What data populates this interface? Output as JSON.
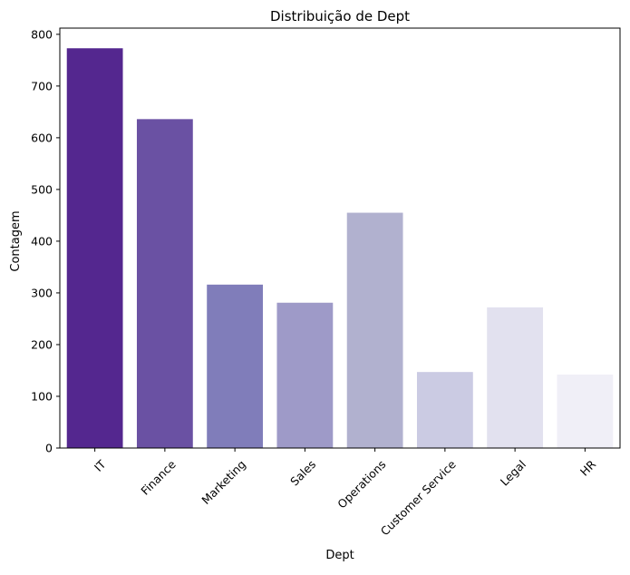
{
  "chart_data": {
    "type": "bar",
    "title": "Distribuição de Dept",
    "xlabel": "Dept",
    "ylabel": "Contagem",
    "categories": [
      "IT",
      "Finance",
      "Marketing",
      "Sales",
      "Operations",
      "Customer Service",
      "Legal",
      "HR"
    ],
    "values": [
      773,
      636,
      316,
      281,
      455,
      147,
      272,
      142
    ],
    "colors": [
      "#54278f",
      "#6a51a3",
      "#807dba",
      "#9e9ac8",
      "#b1b1cf",
      "#cbcbe3",
      "#e2e1ef",
      "#f0eff7"
    ],
    "ylim": [
      0,
      812
    ],
    "yticks": [
      0,
      100,
      200,
      300,
      400,
      500,
      600,
      700,
      800
    ],
    "grid": false,
    "legend": "none"
  }
}
